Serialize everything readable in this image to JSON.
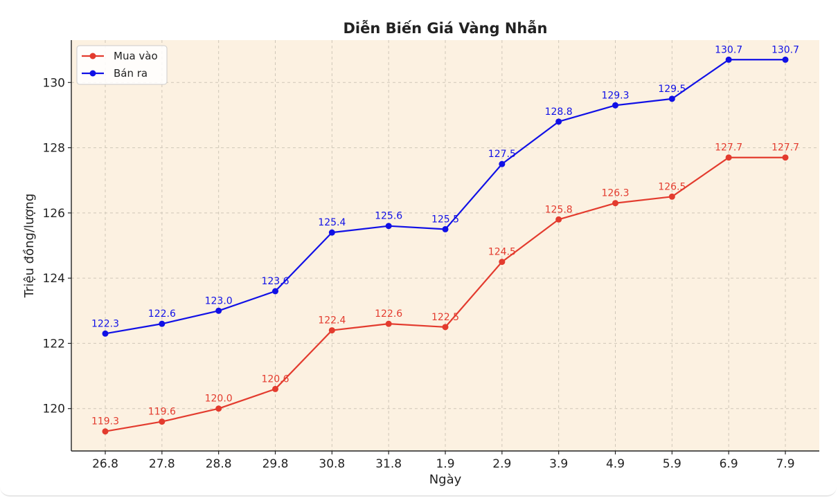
{
  "chart_data": {
    "type": "line",
    "title": "Diễn Biến Giá Vàng Nhẫn",
    "xlabel": "Ngày",
    "ylabel": "Triệu đồng/lượng",
    "categories": [
      "26.8",
      "27.8",
      "28.8",
      "29.8",
      "30.8",
      "31.8",
      "1.9",
      "2.9",
      "3.9",
      "4.9",
      "5.9",
      "6.9",
      "7.9"
    ],
    "ylim": [
      118.7,
      131.3
    ],
    "yticks": [
      120,
      122,
      124,
      126,
      128,
      130
    ],
    "grid": true,
    "legend_position": "top-left",
    "background_color": "#fcf1e1",
    "series": [
      {
        "name": "Mua vào",
        "color": "#e33b2e",
        "values": [
          119.3,
          119.6,
          120.0,
          120.6,
          122.4,
          122.6,
          122.5,
          124.5,
          125.8,
          126.3,
          126.5,
          127.7,
          127.7
        ],
        "labels": [
          "119.3",
          "119.6",
          "120.0",
          "120.6",
          "122.4",
          "122.6",
          "122.5",
          "124.5",
          "125.8",
          "126.3",
          "126.5",
          "127.7",
          "127.7"
        ]
      },
      {
        "name": "Bán ra",
        "color": "#1010e6",
        "values": [
          122.3,
          122.6,
          123.0,
          123.6,
          125.4,
          125.6,
          125.5,
          127.5,
          128.8,
          129.3,
          129.5,
          130.7,
          130.7
        ],
        "labels": [
          "122.3",
          "122.6",
          "123.0",
          "123.6",
          "125.4",
          "125.6",
          "125.5",
          "127.5",
          "128.8",
          "129.3",
          "129.5",
          "130.7",
          "130.7"
        ]
      }
    ]
  }
}
